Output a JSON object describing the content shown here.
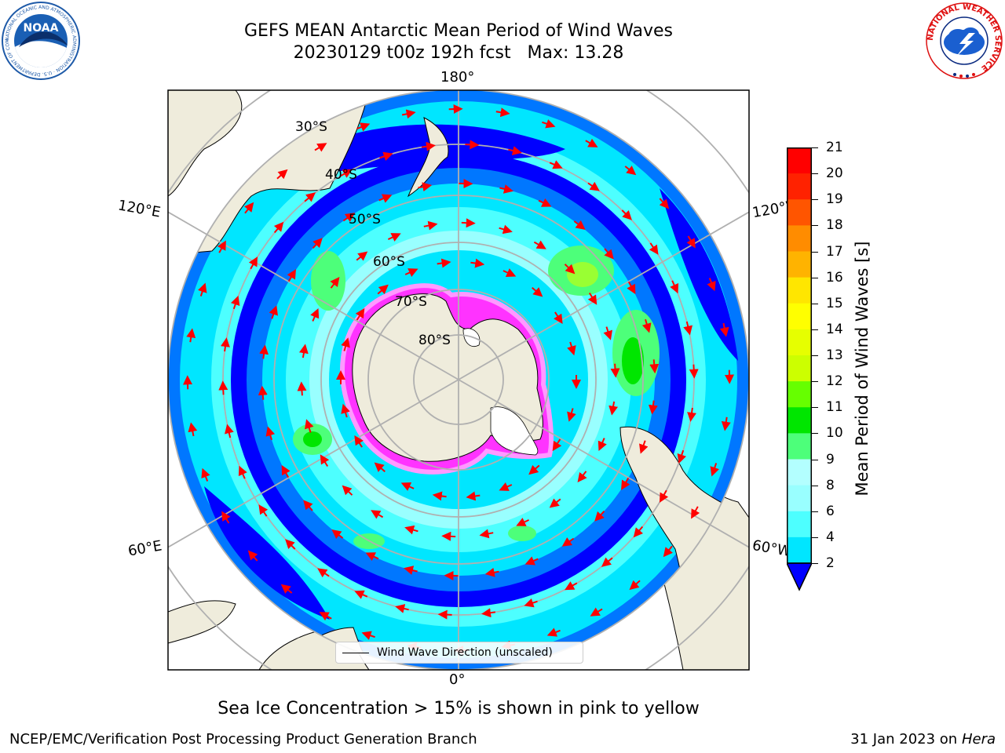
{
  "title": {
    "line1": "GEFS MEAN Antarctic Mean Period of Wind Waves",
    "line2": "20230129 t00z 192h fcst   Max: 13.28"
  },
  "logos": {
    "left_icon": "noaa-logo-icon",
    "left_text": "NOAA",
    "left_ring_text": "NATIONAL OCEANIC AND ATMOSPHERIC ADMINISTRATION · U.S. DEPARTMENT OF COMMERCE",
    "right_icon": "nws-logo-icon",
    "right_ring_text": "NATIONAL WEATHER SERVICE"
  },
  "map": {
    "projection": "south-polar-stereographic",
    "longitude_labels": {
      "top": "180°",
      "bottom": "0°",
      "upper_left": "120°E",
      "upper_right": "120°W",
      "lower_left": "60°E",
      "lower_right": "60°W"
    },
    "latitude_labels": [
      "30°S",
      "40°S",
      "50°S",
      "60°S",
      "70°S",
      "80°S"
    ],
    "colors": {
      "ocean": "#0000ff",
      "land": "#efecdc",
      "ice": "#ff33ff",
      "arrows": "#ff0000",
      "grid": "#b0b0b0"
    },
    "legend": {
      "label": "Wind Wave Direction (unscaled)"
    }
  },
  "colorbar": {
    "label": "Mean Period of Wind Waves [s]",
    "ticks": [
      "2",
      "4",
      "6",
      "8",
      "9",
      "10",
      "11",
      "12",
      "13",
      "14",
      "15",
      "16",
      "17",
      "18",
      "19",
      "20",
      "21"
    ],
    "colors": [
      "#0077ff",
      "#00e6ff",
      "#4dffff",
      "#99ffff",
      "#b3ffff",
      "#4dff7a",
      "#00e600",
      "#66ff00",
      "#ccff00",
      "#e6ff00",
      "#ffff00",
      "#ffe600",
      "#ffb300",
      "#ff8c00",
      "#ff5500",
      "#ff2200",
      "#ff0000"
    ],
    "extend_min_color": "#0000ff"
  },
  "caption": "Sea Ice Concentration > 15% is shown in pink to yellow",
  "footer": {
    "left": "NCEP/EMC/Verification Post Processing Product Generation Branch",
    "right_date": "31 Jan 2023 on ",
    "right_machine": "Hera"
  }
}
